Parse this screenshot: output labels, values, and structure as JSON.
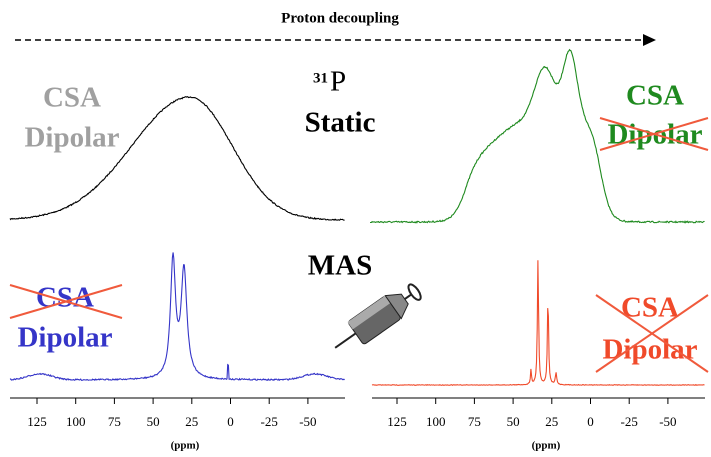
{
  "header": {
    "title": "Proton decoupling"
  },
  "labels": {
    "isotope": "31",
    "element": "P",
    "static": "Static",
    "mas": "MAS",
    "unit": "(ppm)"
  },
  "panels": [
    {
      "lines": [
        "CSA",
        "Dipolar"
      ]
    },
    {
      "lines": [
        "CSA",
        "Dipolar"
      ]
    },
    {
      "lines": [
        "CSA",
        "Dipolar"
      ]
    },
    {
      "lines": [
        "CSA",
        "Dipolar"
      ]
    }
  ],
  "axis": {
    "ticks": [
      "125",
      "100",
      "75",
      "50",
      "25",
      "0",
      "-25",
      "-50"
    ]
  }
}
